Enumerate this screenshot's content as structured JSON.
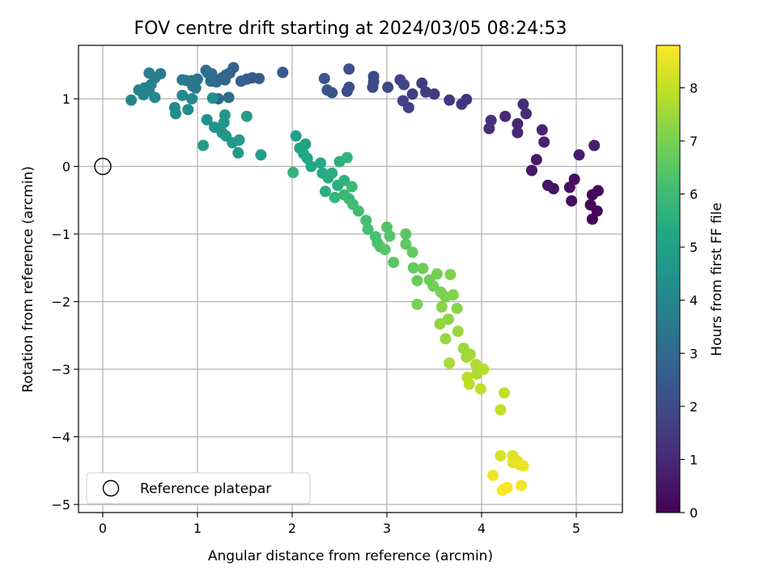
{
  "chart_data": {
    "type": "scatter",
    "title": "FOV centre drift starting at 2024/03/05 08:24:53",
    "xlabel": "Angular distance from reference (arcmin)",
    "ylabel": "Rotation from reference (arcmin)",
    "colorbar_label": "Hours from first FF file",
    "xlim": [
      -0.25,
      5.5
    ],
    "ylim": [
      -5.1,
      1.8
    ],
    "clim": [
      0,
      8.8
    ],
    "x_ticks": [
      "0",
      "1",
      "2",
      "3",
      "4",
      "5"
    ],
    "y_ticks": [
      "−5",
      "−4",
      "−3",
      "−2",
      "−1",
      "0",
      "1"
    ],
    "colorbar_ticks": [
      "0",
      "1",
      "2",
      "3",
      "4",
      "5",
      "6",
      "7",
      "8"
    ],
    "grid": true,
    "colormap": "viridis",
    "legend": {
      "placement": "lower-left",
      "entries": [
        {
          "label": "Reference platepar",
          "marker": "open-circle",
          "color": "#000000"
        }
      ]
    },
    "reference_point": {
      "x": 0,
      "y": 0
    },
    "points": [
      {
        "x": 5.17,
        "y": -0.78,
        "c": 0.05
      },
      {
        "x": 5.15,
        "y": -0.57,
        "c": 0.1
      },
      {
        "x": 5.22,
        "y": -0.66,
        "c": 0.15
      },
      {
        "x": 5.17,
        "y": -0.42,
        "c": 0.2
      },
      {
        "x": 5.23,
        "y": -0.36,
        "c": 0.25
      },
      {
        "x": 4.95,
        "y": -0.51,
        "c": 0.3
      },
      {
        "x": 4.98,
        "y": -0.19,
        "c": 0.35
      },
      {
        "x": 4.93,
        "y": -0.31,
        "c": 0.4
      },
      {
        "x": 4.76,
        "y": -0.33,
        "c": 0.45
      },
      {
        "x": 4.7,
        "y": -0.28,
        "c": 0.5
      },
      {
        "x": 4.53,
        "y": -0.06,
        "c": 0.55
      },
      {
        "x": 4.58,
        "y": 0.1,
        "c": 0.6
      },
      {
        "x": 5.03,
        "y": 0.17,
        "c": 0.7
      },
      {
        "x": 5.19,
        "y": 0.31,
        "c": 0.75
      },
      {
        "x": 4.66,
        "y": 0.36,
        "c": 0.8
      },
      {
        "x": 4.64,
        "y": 0.54,
        "c": 0.85
      },
      {
        "x": 4.38,
        "y": 0.5,
        "c": 0.9
      },
      {
        "x": 4.38,
        "y": 0.63,
        "c": 0.95
      },
      {
        "x": 4.25,
        "y": 0.74,
        "c": 1.0
      },
      {
        "x": 4.47,
        "y": 0.78,
        "c": 1.05
      },
      {
        "x": 4.44,
        "y": 0.92,
        "c": 1.1
      },
      {
        "x": 4.08,
        "y": 0.56,
        "c": 1.15
      },
      {
        "x": 4.1,
        "y": 0.68,
        "c": 1.2
      },
      {
        "x": 3.84,
        "y": 0.99,
        "c": 1.3
      },
      {
        "x": 3.79,
        "y": 0.92,
        "c": 1.35
      },
      {
        "x": 3.66,
        "y": 0.98,
        "c": 1.4
      },
      {
        "x": 3.5,
        "y": 1.07,
        "c": 1.45
      },
      {
        "x": 3.37,
        "y": 1.23,
        "c": 1.5
      },
      {
        "x": 3.41,
        "y": 1.1,
        "c": 1.55
      },
      {
        "x": 3.27,
        "y": 1.07,
        "c": 1.6
      },
      {
        "x": 3.23,
        "y": 0.87,
        "c": 1.65
      },
      {
        "x": 3.17,
        "y": 0.97,
        "c": 1.7
      },
      {
        "x": 3.14,
        "y": 1.28,
        "c": 1.75
      },
      {
        "x": 3.18,
        "y": 1.21,
        "c": 1.8
      },
      {
        "x": 3.01,
        "y": 1.17,
        "c": 1.85
      },
      {
        "x": 2.85,
        "y": 1.17,
        "c": 1.9
      },
      {
        "x": 2.86,
        "y": 1.33,
        "c": 1.95
      },
      {
        "x": 2.86,
        "y": 1.25,
        "c": 2.0
      },
      {
        "x": 2.58,
        "y": 1.11,
        "c": 2.05
      },
      {
        "x": 2.6,
        "y": 1.17,
        "c": 2.1
      },
      {
        "x": 2.6,
        "y": 1.44,
        "c": 2.15
      },
      {
        "x": 2.37,
        "y": 1.13,
        "c": 2.2
      },
      {
        "x": 2.42,
        "y": 1.09,
        "c": 2.25
      },
      {
        "x": 2.34,
        "y": 1.3,
        "c": 2.3
      },
      {
        "x": 1.9,
        "y": 1.39,
        "c": 2.4
      },
      {
        "x": 1.65,
        "y": 1.3,
        "c": 2.5
      },
      {
        "x": 1.58,
        "y": 1.31,
        "c": 2.55
      },
      {
        "x": 1.52,
        "y": 1.29,
        "c": 2.6
      },
      {
        "x": 1.46,
        "y": 1.26,
        "c": 2.65
      },
      {
        "x": 1.38,
        "y": 1.46,
        "c": 2.7
      },
      {
        "x": 1.34,
        "y": 1.38,
        "c": 2.75
      },
      {
        "x": 1.3,
        "y": 1.35,
        "c": 2.8
      },
      {
        "x": 1.29,
        "y": 1.28,
        "c": 2.85
      },
      {
        "x": 1.26,
        "y": 1.31,
        "c": 2.9
      },
      {
        "x": 1.2,
        "y": 1.25,
        "c": 2.95
      },
      {
        "x": 1.22,
        "y": 1.0,
        "c": 3.0
      },
      {
        "x": 1.33,
        "y": 1.02,
        "c": 3.05
      },
      {
        "x": 1.15,
        "y": 1.37,
        "c": 3.1
      },
      {
        "x": 1.14,
        "y": 1.26,
        "c": 3.15
      },
      {
        "x": 1.09,
        "y": 1.42,
        "c": 3.2
      },
      {
        "x": 1.11,
        "y": 1.38,
        "c": 3.25
      },
      {
        "x": 1.0,
        "y": 1.29,
        "c": 3.3
      },
      {
        "x": 0.95,
        "y": 1.19,
        "c": 3.35
      },
      {
        "x": 0.98,
        "y": 1.16,
        "c": 3.4
      },
      {
        "x": 0.94,
        "y": 1.27,
        "c": 3.45
      },
      {
        "x": 0.88,
        "y": 1.27,
        "c": 3.5
      },
      {
        "x": 0.84,
        "y": 1.28,
        "c": 3.55
      },
      {
        "x": 0.61,
        "y": 1.37,
        "c": 3.6
      },
      {
        "x": 0.55,
        "y": 1.31,
        "c": 3.65
      },
      {
        "x": 0.49,
        "y": 1.38,
        "c": 3.7
      },
      {
        "x": 0.51,
        "y": 1.21,
        "c": 3.75
      },
      {
        "x": 0.49,
        "y": 1.12,
        "c": 3.8
      },
      {
        "x": 0.44,
        "y": 1.16,
        "c": 3.85
      },
      {
        "x": 0.38,
        "y": 1.13,
        "c": 3.9
      },
      {
        "x": 0.43,
        "y": 1.06,
        "c": 3.95
      },
      {
        "x": 0.55,
        "y": 1.02,
        "c": 4.0
      },
      {
        "x": 0.3,
        "y": 0.98,
        "c": 4.05
      },
      {
        "x": 0.84,
        "y": 1.05,
        "c": 4.1
      },
      {
        "x": 0.94,
        "y": 1.0,
        "c": 4.15
      },
      {
        "x": 0.76,
        "y": 0.87,
        "c": 4.2
      },
      {
        "x": 0.77,
        "y": 0.78,
        "c": 4.25
      },
      {
        "x": 0.9,
        "y": 0.84,
        "c": 4.3
      },
      {
        "x": 1.16,
        "y": 1.01,
        "c": 4.35
      },
      {
        "x": 1.1,
        "y": 0.69,
        "c": 4.4
      },
      {
        "x": 1.18,
        "y": 0.58,
        "c": 4.45
      },
      {
        "x": 1.26,
        "y": 0.5,
        "c": 4.5
      },
      {
        "x": 1.28,
        "y": 0.65,
        "c": 4.55
      },
      {
        "x": 1.29,
        "y": 0.76,
        "c": 4.6
      },
      {
        "x": 1.3,
        "y": 0.45,
        "c": 4.65
      },
      {
        "x": 1.37,
        "y": 0.35,
        "c": 4.7
      },
      {
        "x": 1.44,
        "y": 0.39,
        "c": 4.75
      },
      {
        "x": 1.43,
        "y": 0.2,
        "c": 4.8
      },
      {
        "x": 1.52,
        "y": 0.74,
        "c": 4.85
      },
      {
        "x": 1.06,
        "y": 0.31,
        "c": 4.9
      },
      {
        "x": 1.67,
        "y": 0.17,
        "c": 4.95
      },
      {
        "x": 2.04,
        "y": 0.45,
        "c": 5.0
      },
      {
        "x": 2.14,
        "y": 0.33,
        "c": 5.05
      },
      {
        "x": 2.08,
        "y": 0.27,
        "c": 5.1
      },
      {
        "x": 2.12,
        "y": 0.19,
        "c": 5.15
      },
      {
        "x": 2.16,
        "y": 0.12,
        "c": 5.2
      },
      {
        "x": 2.2,
        "y": 0.0,
        "c": 5.25
      },
      {
        "x": 2.3,
        "y": 0.05,
        "c": 5.3
      },
      {
        "x": 2.32,
        "y": -0.1,
        "c": 5.35
      },
      {
        "x": 2.38,
        "y": -0.17,
        "c": 5.4
      },
      {
        "x": 2.42,
        "y": -0.1,
        "c": 5.45
      },
      {
        "x": 2.35,
        "y": -0.37,
        "c": 5.5
      },
      {
        "x": 2.48,
        "y": -0.28,
        "c": 5.55
      },
      {
        "x": 2.5,
        "y": 0.07,
        "c": 5.6
      },
      {
        "x": 2.55,
        "y": -0.21,
        "c": 5.65
      },
      {
        "x": 2.58,
        "y": 0.13,
        "c": 5.7
      },
      {
        "x": 2.01,
        "y": -0.09,
        "c": 5.75
      },
      {
        "x": 2.45,
        "y": -0.46,
        "c": 5.8
      },
      {
        "x": 2.55,
        "y": -0.42,
        "c": 5.85
      },
      {
        "x": 2.6,
        "y": -0.48,
        "c": 5.9
      },
      {
        "x": 2.63,
        "y": -0.3,
        "c": 5.95
      },
      {
        "x": 2.64,
        "y": -0.56,
        "c": 6.0
      },
      {
        "x": 2.7,
        "y": -0.66,
        "c": 6.05
      },
      {
        "x": 2.78,
        "y": -0.8,
        "c": 6.1
      },
      {
        "x": 2.8,
        "y": -0.93,
        "c": 6.15
      },
      {
        "x": 2.88,
        "y": -1.04,
        "c": 6.2
      },
      {
        "x": 2.9,
        "y": -1.13,
        "c": 6.25
      },
      {
        "x": 2.93,
        "y": -1.19,
        "c": 6.3
      },
      {
        "x": 3.0,
        "y": -0.9,
        "c": 6.35
      },
      {
        "x": 3.03,
        "y": -1.03,
        "c": 6.4
      },
      {
        "x": 2.98,
        "y": -1.23,
        "c": 6.45
      },
      {
        "x": 3.07,
        "y": -1.42,
        "c": 6.5
      },
      {
        "x": 3.2,
        "y": -1.0,
        "c": 6.55
      },
      {
        "x": 3.2,
        "y": -1.15,
        "c": 6.6
      },
      {
        "x": 3.27,
        "y": -1.27,
        "c": 6.65
      },
      {
        "x": 3.28,
        "y": -1.5,
        "c": 6.7
      },
      {
        "x": 3.32,
        "y": -1.69,
        "c": 6.75
      },
      {
        "x": 3.38,
        "y": -1.51,
        "c": 6.8
      },
      {
        "x": 3.45,
        "y": -1.68,
        "c": 6.85
      },
      {
        "x": 3.49,
        "y": -1.77,
        "c": 6.9
      },
      {
        "x": 3.53,
        "y": -1.59,
        "c": 6.95
      },
      {
        "x": 3.57,
        "y": -1.86,
        "c": 7.0
      },
      {
        "x": 3.62,
        "y": -1.93,
        "c": 7.05
      },
      {
        "x": 3.67,
        "y": -1.6,
        "c": 7.1
      },
      {
        "x": 3.7,
        "y": -1.9,
        "c": 7.15
      },
      {
        "x": 3.74,
        "y": -2.1,
        "c": 7.2
      },
      {
        "x": 3.58,
        "y": -2.08,
        "c": 7.25
      },
      {
        "x": 3.65,
        "y": -2.26,
        "c": 7.3
      },
      {
        "x": 3.56,
        "y": -2.33,
        "c": 7.35
      },
      {
        "x": 3.62,
        "y": -2.55,
        "c": 7.4
      },
      {
        "x": 3.75,
        "y": -2.44,
        "c": 7.45
      },
      {
        "x": 3.81,
        "y": -2.69,
        "c": 7.5
      },
      {
        "x": 3.84,
        "y": -2.82,
        "c": 7.55
      },
      {
        "x": 3.88,
        "y": -2.78,
        "c": 7.6
      },
      {
        "x": 3.66,
        "y": -2.91,
        "c": 7.65
      },
      {
        "x": 3.94,
        "y": -2.93,
        "c": 7.7
      },
      {
        "x": 3.95,
        "y": -3.07,
        "c": 7.75
      },
      {
        "x": 4.02,
        "y": -3.0,
        "c": 7.8
      },
      {
        "x": 3.85,
        "y": -3.12,
        "c": 7.85
      },
      {
        "x": 3.87,
        "y": -3.22,
        "c": 7.9
      },
      {
        "x": 3.99,
        "y": -3.29,
        "c": 7.95
      },
      {
        "x": 3.32,
        "y": -2.04,
        "c": 7.0
      },
      {
        "x": 4.24,
        "y": -3.35,
        "c": 8.0
      },
      {
        "x": 4.2,
        "y": -3.6,
        "c": 8.05
      },
      {
        "x": 4.2,
        "y": -4.28,
        "c": 8.3
      },
      {
        "x": 4.33,
        "y": -4.28,
        "c": 8.35
      },
      {
        "x": 4.38,
        "y": -4.36,
        "c": 8.4
      },
      {
        "x": 4.33,
        "y": -4.38,
        "c": 8.45
      },
      {
        "x": 4.4,
        "y": -4.41,
        "c": 8.5
      },
      {
        "x": 4.44,
        "y": -4.43,
        "c": 8.55
      },
      {
        "x": 4.12,
        "y": -4.57,
        "c": 8.6
      },
      {
        "x": 4.42,
        "y": -4.72,
        "c": 8.65
      },
      {
        "x": 4.27,
        "y": -4.75,
        "c": 8.7
      },
      {
        "x": 4.22,
        "y": -4.79,
        "c": 8.75
      },
      {
        "x": 4.24,
        "y": -4.77,
        "c": 8.8
      }
    ]
  }
}
